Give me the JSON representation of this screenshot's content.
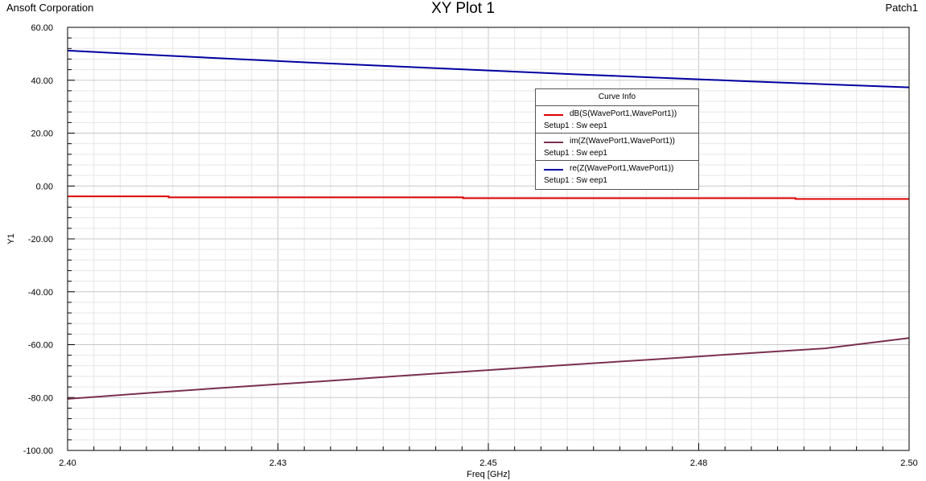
{
  "header": {
    "company": "Ansoft Corporation",
    "title": "XY Plot 1",
    "project": "Patch1"
  },
  "legend": {
    "title": "Curve Info",
    "entries": [
      {
        "name": "dB(S(WavePort1,WavePort1))",
        "setup": "Setup1 : Sw eep1",
        "color": "#e00000"
      },
      {
        "name": "im(Z(WavePort1,WavePort1))",
        "setup": "Setup1 : Sw eep1",
        "color": "#7a3050"
      },
      {
        "name": "re(Z(WavePort1,WavePort1))",
        "setup": "Setup1 : Sw eep1",
        "color": "#0000a0"
      }
    ]
  },
  "chart_data": {
    "type": "line",
    "title": "XY Plot 1",
    "xlabel": "Freq [GHz]",
    "ylabel": "Y1",
    "xlim": [
      2.4,
      2.5
    ],
    "ylim": [
      -100,
      60
    ],
    "x_ticks": [
      2.4,
      2.425,
      2.45,
      2.475,
      2.5
    ],
    "x_tick_labels": [
      "2.40",
      "2.43",
      "2.45",
      "2.48",
      "2.50"
    ],
    "y_ticks": [
      60,
      40,
      20,
      0,
      -20,
      -40,
      -60,
      -80,
      -100
    ],
    "y_tick_labels": [
      "60.00",
      "40.00",
      "20.00",
      "0.00",
      "-20.00",
      "-40.00",
      "-60.00",
      "-80.00",
      "-100.00"
    ],
    "grid": true,
    "legend_position": "top-right",
    "series": [
      {
        "name": "dB(S(WavePort1,WavePort1))",
        "color": "#e00000",
        "x": [
          2.4,
          2.412,
          2.412,
          2.447,
          2.447,
          2.4865,
          2.4865,
          2.5
        ],
        "y": [
          -3.9,
          -3.9,
          -4.3,
          -4.3,
          -4.6,
          -4.6,
          -4.9,
          -4.9
        ]
      },
      {
        "name": "im(Z(WavePort1,WavePort1))",
        "color": "#7a3050",
        "x": [
          2.4,
          2.41,
          2.42,
          2.43,
          2.44,
          2.45,
          2.46,
          2.47,
          2.48,
          2.49,
          2.5
        ],
        "y": [
          -80.5,
          -78.2,
          -76.0,
          -73.9,
          -71.7,
          -69.6,
          -67.5,
          -65.5,
          -63.4,
          -61.4,
          -57.5
        ]
      },
      {
        "name": "re(Z(WavePort1,WavePort1))",
        "color": "#0000a0",
        "x": [
          2.4,
          2.41,
          2.42,
          2.43,
          2.44,
          2.45,
          2.46,
          2.47,
          2.48,
          2.49,
          2.5
        ],
        "y": [
          51.2,
          49.6,
          48.0,
          46.5,
          45.1,
          43.7,
          42.3,
          41.0,
          39.7,
          38.5,
          37.3
        ]
      }
    ]
  }
}
